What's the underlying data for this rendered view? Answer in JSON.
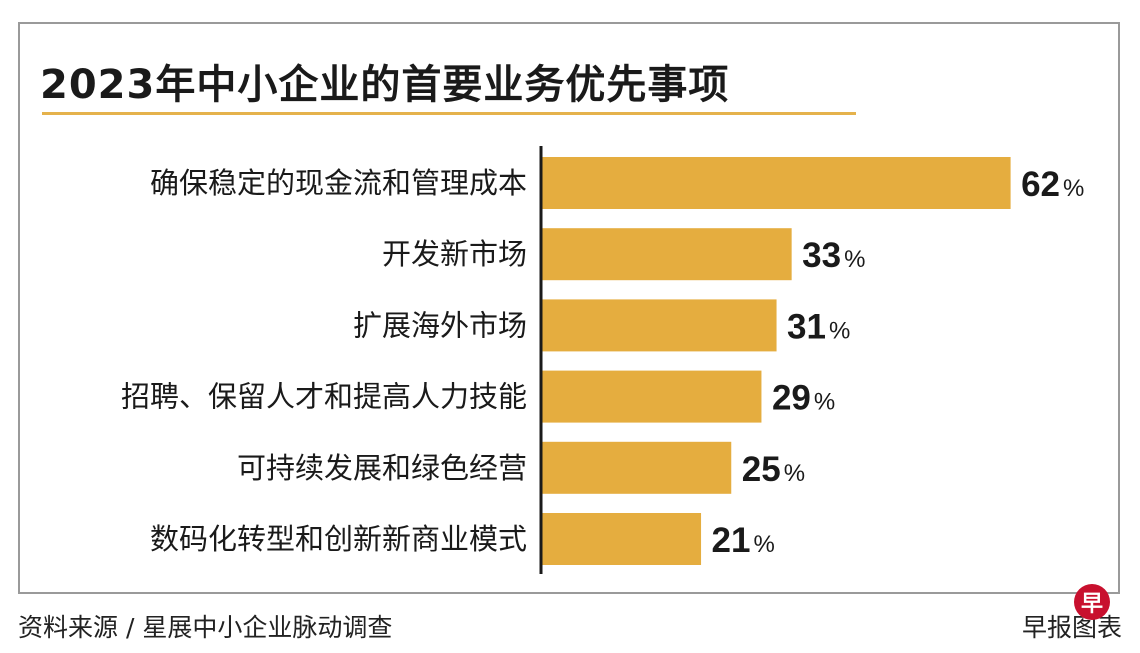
{
  "chart_data": {
    "type": "bar",
    "orientation": "horizontal",
    "title": "2023年中小企业的首要业务优先事项",
    "categories": [
      "确保稳定的现金流和管理成本",
      "开发新市场",
      "扩展海外市场",
      "招聘、保留人才和提高人力技能",
      "可持续发展和绿色经营",
      "数码化转型和创新新商业模式"
    ],
    "values": [
      62,
      33,
      31,
      29,
      25,
      21
    ],
    "unit": "%",
    "bar_color": "#e5ad3f",
    "grid": false,
    "legend": "none"
  },
  "footer": {
    "source": "资料来源 / 星展中小企业脉动调查",
    "credit": "早报图表",
    "logo_char": "早"
  }
}
